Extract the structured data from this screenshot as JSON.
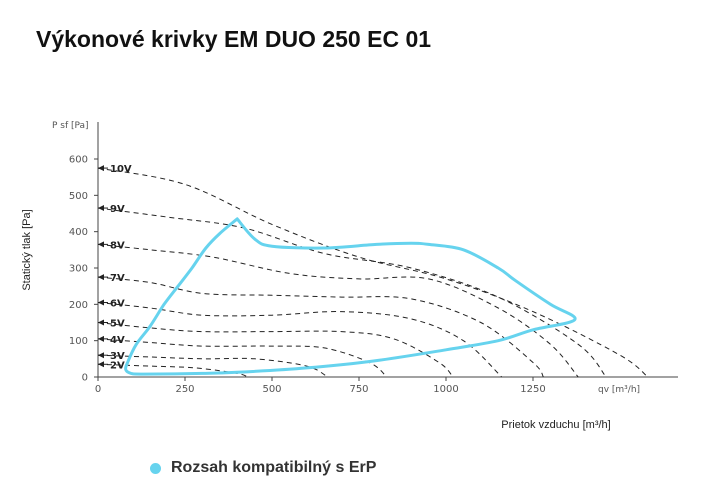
{
  "title": "Výkonové krivky EM DUO 250 EC 01",
  "chart_data": {
    "type": "line",
    "title": "Výkonové krivky EM DUO 250 EC 01",
    "xlabel": "Prietok vzduchu [m³/h]",
    "ylabel": "Statický tlak [Pa]",
    "x_axis_unit": "qv [m³/h]",
    "y_axis_unit": "P sf [Pa]",
    "xlim": [
      0,
      1650
    ],
    "ylim": [
      0,
      650
    ],
    "xticks": [
      0,
      250,
      500,
      750,
      1000,
      1250
    ],
    "yticks": [
      0,
      100,
      200,
      300,
      400,
      500,
      600
    ],
    "legend": "bottom",
    "grid": false,
    "colors": {
      "erp_range": "#66d3ee",
      "curves": "#222222"
    },
    "series": [
      {
        "label": "10V",
        "points": [
          [
            0,
            575
          ],
          [
            250,
            530
          ],
          [
            500,
            420
          ],
          [
            750,
            330
          ],
          [
            1000,
            270
          ],
          [
            1250,
            180
          ],
          [
            1500,
            60
          ],
          [
            1580,
            0
          ]
        ]
      },
      {
        "label": "9V",
        "points": [
          [
            0,
            465
          ],
          [
            200,
            440
          ],
          [
            420,
            410
          ],
          [
            650,
            340
          ],
          [
            900,
            300
          ],
          [
            1150,
            220
          ],
          [
            1380,
            90
          ],
          [
            1460,
            0
          ]
        ]
      },
      {
        "label": "8V",
        "points": [
          [
            0,
            365
          ],
          [
            150,
            350
          ],
          [
            330,
            330
          ],
          [
            550,
            285
          ],
          [
            750,
            270
          ],
          [
            950,
            270
          ],
          [
            1150,
            190
          ],
          [
            1300,
            90
          ],
          [
            1380,
            0
          ]
        ]
      },
      {
        "label": "7V",
        "points": [
          [
            0,
            275
          ],
          [
            150,
            260
          ],
          [
            300,
            230
          ],
          [
            500,
            225
          ],
          [
            700,
            220
          ],
          [
            900,
            215
          ],
          [
            1100,
            150
          ],
          [
            1250,
            40
          ],
          [
            1280,
            0
          ]
        ]
      },
      {
        "label": "6V",
        "points": [
          [
            0,
            205
          ],
          [
            150,
            190
          ],
          [
            300,
            170
          ],
          [
            500,
            170
          ],
          [
            700,
            180
          ],
          [
            900,
            160
          ],
          [
            1050,
            100
          ],
          [
            1160,
            0
          ]
        ]
      },
      {
        "label": "5V",
        "points": [
          [
            0,
            150
          ],
          [
            150,
            135
          ],
          [
            300,
            125
          ],
          [
            500,
            125
          ],
          [
            700,
            125
          ],
          [
            850,
            105
          ],
          [
            980,
            40
          ],
          [
            1020,
            0
          ]
        ]
      },
      {
        "label": "4V",
        "points": [
          [
            0,
            105
          ],
          [
            150,
            95
          ],
          [
            300,
            85
          ],
          [
            500,
            85
          ],
          [
            650,
            80
          ],
          [
            780,
            40
          ],
          [
            830,
            0
          ]
        ]
      },
      {
        "label": "3V",
        "points": [
          [
            0,
            60
          ],
          [
            150,
            55
          ],
          [
            300,
            50
          ],
          [
            450,
            50
          ],
          [
            600,
            30
          ],
          [
            660,
            0
          ]
        ]
      },
      {
        "label": "2V",
        "points": [
          [
            0,
            35
          ],
          [
            150,
            30
          ],
          [
            280,
            25
          ],
          [
            400,
            10
          ],
          [
            430,
            0
          ]
        ]
      }
    ],
    "erp_range": {
      "name": "Rozsah kompatibilný s ErP",
      "points": [
        [
          400,
          435
        ],
        [
          350,
          395
        ],
        [
          310,
          355
        ],
        [
          270,
          300
        ],
        [
          230,
          250
        ],
        [
          190,
          200
        ],
        [
          150,
          140
        ],
        [
          110,
          90
        ],
        [
          85,
          40
        ],
        [
          80,
          20
        ],
        [
          95,
          10
        ],
        [
          130,
          8
        ],
        [
          300,
          10
        ],
        [
          400,
          13
        ],
        [
          600,
          25
        ],
        [
          800,
          45
        ],
        [
          1000,
          75
        ],
        [
          1150,
          100
        ],
        [
          1250,
          130
        ],
        [
          1370,
          158
        ],
        [
          1300,
          200
        ],
        [
          1200,
          265
        ],
        [
          1150,
          300
        ],
        [
          1050,
          350
        ],
        [
          950,
          365
        ],
        [
          900,
          368
        ],
        [
          800,
          365
        ],
        [
          650,
          355
        ],
        [
          500,
          360
        ],
        [
          450,
          380
        ],
        [
          400,
          435
        ]
      ]
    }
  },
  "legend": {
    "label": "Rozsah kompatibilný s ErP"
  }
}
